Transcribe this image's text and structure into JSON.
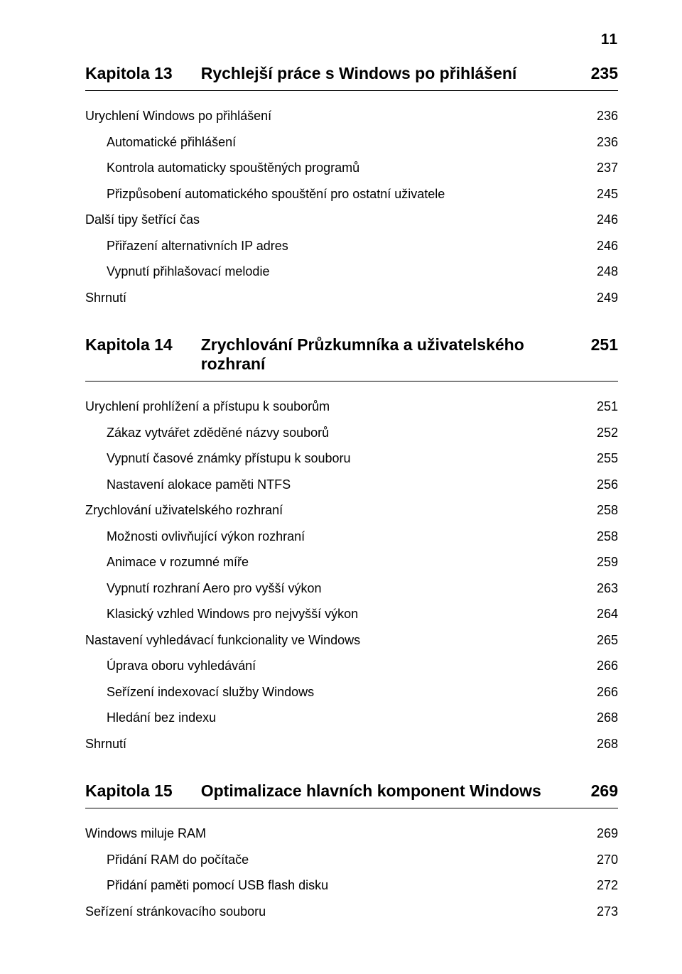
{
  "pageNumber": "11",
  "typography": {
    "body_fontsize": 18,
    "chapter_fontsize": 23,
    "pagenum_fontsize": 21,
    "text_color": "#000000",
    "background_color": "#ffffff",
    "rule_color": "#000000"
  },
  "chapters": [
    {
      "label": "Kapitola 13",
      "title": "Rychlejší práce s Windows po přihlášení",
      "page": "235",
      "entries": [
        {
          "level": 0,
          "title": "Urychlení Windows po přihlášení",
          "page": "236"
        },
        {
          "level": 1,
          "title": "Automatické přihlášení",
          "page": "236"
        },
        {
          "level": 1,
          "title": "Kontrola automaticky spouštěných programů",
          "page": "237"
        },
        {
          "level": 1,
          "title": "Přizpůsobení automatického spouštění pro ostatní uživatele",
          "page": "245"
        },
        {
          "level": 0,
          "title": "Další tipy šetřící čas",
          "page": "246"
        },
        {
          "level": 1,
          "title": "Přiřazení alternativních IP adres",
          "page": "246"
        },
        {
          "level": 1,
          "title": "Vypnutí přihlašovací melodie",
          "page": "248"
        },
        {
          "level": 0,
          "title": "Shrnutí",
          "page": "249"
        }
      ]
    },
    {
      "label": "Kapitola 14",
      "title": "Zrychlování Průzkumníka a uživatelského rozhraní",
      "page": "251",
      "entries": [
        {
          "level": 0,
          "title": "Urychlení prohlížení a přístupu k souborům",
          "page": "251"
        },
        {
          "level": 1,
          "title": "Zákaz vytvářet zděděné názvy souborů",
          "page": "252"
        },
        {
          "level": 1,
          "title": "Vypnutí časové známky přístupu k souboru",
          "page": "255"
        },
        {
          "level": 1,
          "title": "Nastavení alokace paměti NTFS",
          "page": "256"
        },
        {
          "level": 0,
          "title": "Zrychlování uživatelského rozhraní",
          "page": "258"
        },
        {
          "level": 1,
          "title": "Možnosti ovlivňující výkon rozhraní",
          "page": "258"
        },
        {
          "level": 1,
          "title": "Animace v rozumné míře",
          "page": "259"
        },
        {
          "level": 1,
          "title": "Vypnutí rozhraní Aero pro vyšší výkon",
          "page": "263"
        },
        {
          "level": 1,
          "title": "Klasický vzhled Windows pro nejvyšší výkon",
          "page": "264"
        },
        {
          "level": 0,
          "title": "Nastavení vyhledávací funkcionality ve Windows",
          "page": "265"
        },
        {
          "level": 1,
          "title": "Úprava oboru vyhledávání",
          "page": "266"
        },
        {
          "level": 1,
          "title": "Seřízení indexovací služby Windows",
          "page": "266"
        },
        {
          "level": 1,
          "title": "Hledání bez indexu",
          "page": "268"
        },
        {
          "level": 0,
          "title": "Shrnutí",
          "page": "268"
        }
      ]
    },
    {
      "label": "Kapitola 15",
      "title": "Optimalizace hlavních komponent Windows",
      "page": "269",
      "entries": [
        {
          "level": 0,
          "title": "Windows miluje RAM",
          "page": "269"
        },
        {
          "level": 1,
          "title": "Přidání RAM do počítače",
          "page": "270"
        },
        {
          "level": 1,
          "title": "Přidání paměti pomocí USB flash disku",
          "page": "272"
        },
        {
          "level": 0,
          "title": "Seřízení stránkovacího souboru",
          "page": "273"
        }
      ]
    }
  ]
}
